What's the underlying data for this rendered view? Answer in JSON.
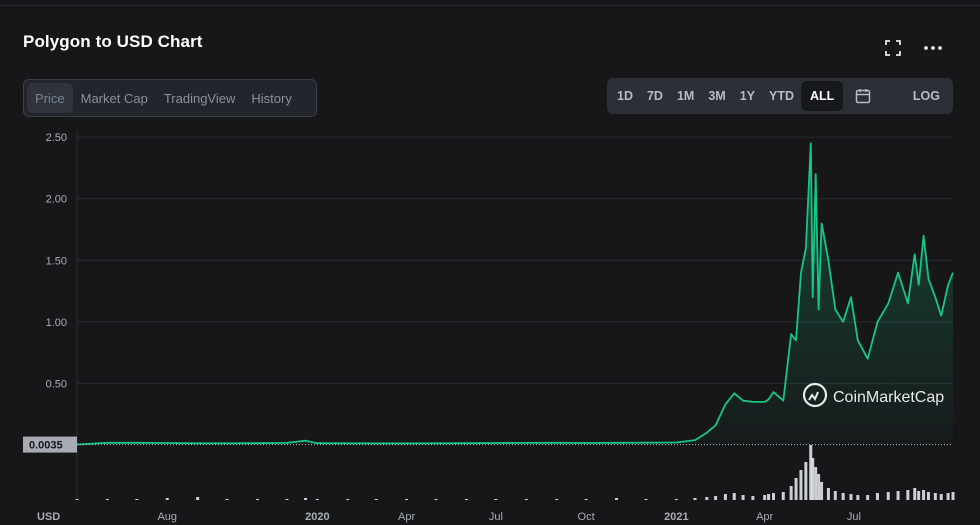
{
  "title": "Polygon to USD Chart",
  "header_icons": [
    "fullscreen-icon",
    "more-options-icon"
  ],
  "tabs": [
    {
      "label": "Price",
      "active": true
    },
    {
      "label": "Market Cap",
      "active": false
    },
    {
      "label": "TradingView",
      "active": false
    },
    {
      "label": "History",
      "active": false
    }
  ],
  "ranges": [
    {
      "label": "1D",
      "active": false
    },
    {
      "label": "7D",
      "active": false
    },
    {
      "label": "1M",
      "active": false
    },
    {
      "label": "3M",
      "active": false
    },
    {
      "label": "1Y",
      "active": false
    },
    {
      "label": "YTD",
      "active": false
    },
    {
      "label": "ALL",
      "active": true
    },
    {
      "label": "calendar-icon",
      "active": false
    },
    {
      "label": "LOG",
      "active": false
    }
  ],
  "colors": {
    "background": "#17171a",
    "line": "#16c784",
    "volume": "#e0e3eb",
    "price_tag": "#a7abb3"
  },
  "watermark": "CoinMarketCap",
  "chart_data": {
    "type": "line",
    "title": "Polygon to USD Chart",
    "xlabel": "",
    "ylabel": "",
    "currency_label": "USD",
    "ylim": [
      0,
      2.55
    ],
    "yticks": [
      "0.50",
      "1.00",
      "1.50",
      "2.00",
      "2.50"
    ],
    "xticks": [
      "Aug",
      "2020",
      "Apr",
      "Jul",
      "Oct",
      "2021",
      "Apr",
      "Jul"
    ],
    "current_price_label": "0.0035",
    "grid": true,
    "legend": "none",
    "series": [
      {
        "x": [
          "2019-05-01",
          "2019-06-01",
          "2019-07-01",
          "2019-08-01",
          "2019-09-01",
          "2019-10-01",
          "2019-11-01",
          "2019-12-01",
          "2019-12-20",
          "2020-01-01",
          "2020-02-01",
          "2020-03-01",
          "2020-04-01",
          "2020-05-01",
          "2020-06-01",
          "2020-07-01",
          "2020-08-01",
          "2020-09-01",
          "2020-10-01",
          "2020-11-01",
          "2020-12-01",
          "2021-01-01",
          "2021-01-20",
          "2021-02-01",
          "2021-02-10",
          "2021-02-20",
          "2021-03-01",
          "2021-03-10",
          "2021-03-20",
          "2021-04-01",
          "2021-04-05",
          "2021-04-10",
          "2021-04-20",
          "2021-04-28",
          "2021-05-03",
          "2021-05-08",
          "2021-05-13",
          "2021-05-18",
          "2021-05-20",
          "2021-05-23",
          "2021-05-26",
          "2021-05-29",
          "2021-06-05",
          "2021-06-12",
          "2021-06-20",
          "2021-06-28",
          "2021-07-05",
          "2021-07-15",
          "2021-07-25",
          "2021-08-05",
          "2021-08-15",
          "2021-08-25",
          "2021-09-01",
          "2021-09-05",
          "2021-09-10",
          "2021-09-15",
          "2021-09-22",
          "2021-09-28",
          "2021-10-05",
          "2021-10-10"
        ],
        "y": [
          0.004,
          0.018,
          0.018,
          0.016,
          0.014,
          0.014,
          0.015,
          0.017,
          0.035,
          0.015,
          0.014,
          0.013,
          0.013,
          0.014,
          0.015,
          0.016,
          0.017,
          0.018,
          0.016,
          0.018,
          0.019,
          0.02,
          0.04,
          0.1,
          0.16,
          0.33,
          0.42,
          0.36,
          0.35,
          0.35,
          0.37,
          0.43,
          0.36,
          0.9,
          0.85,
          1.4,
          1.6,
          2.45,
          1.2,
          2.2,
          1.1,
          1.8,
          1.5,
          1.1,
          1.0,
          1.2,
          0.85,
          0.7,
          1.0,
          1.15,
          1.4,
          1.15,
          1.55,
          1.3,
          1.7,
          1.35,
          1.2,
          1.05,
          1.3,
          1.4
        ]
      }
    ],
    "volume": [
      1,
      1,
      1,
      2,
      3,
      1,
      1,
      1,
      2,
      1,
      1,
      1,
      1,
      1,
      1,
      1,
      1,
      1,
      1,
      2,
      1,
      1,
      2,
      3,
      4,
      6,
      7,
      5,
      4,
      5,
      6,
      7,
      8,
      14,
      22,
      30,
      38,
      55,
      42,
      33,
      26,
      18,
      12,
      9,
      7,
      6,
      5,
      5,
      7,
      8,
      9,
      10,
      12,
      9,
      10,
      8,
      7,
      6,
      7,
      8
    ]
  }
}
